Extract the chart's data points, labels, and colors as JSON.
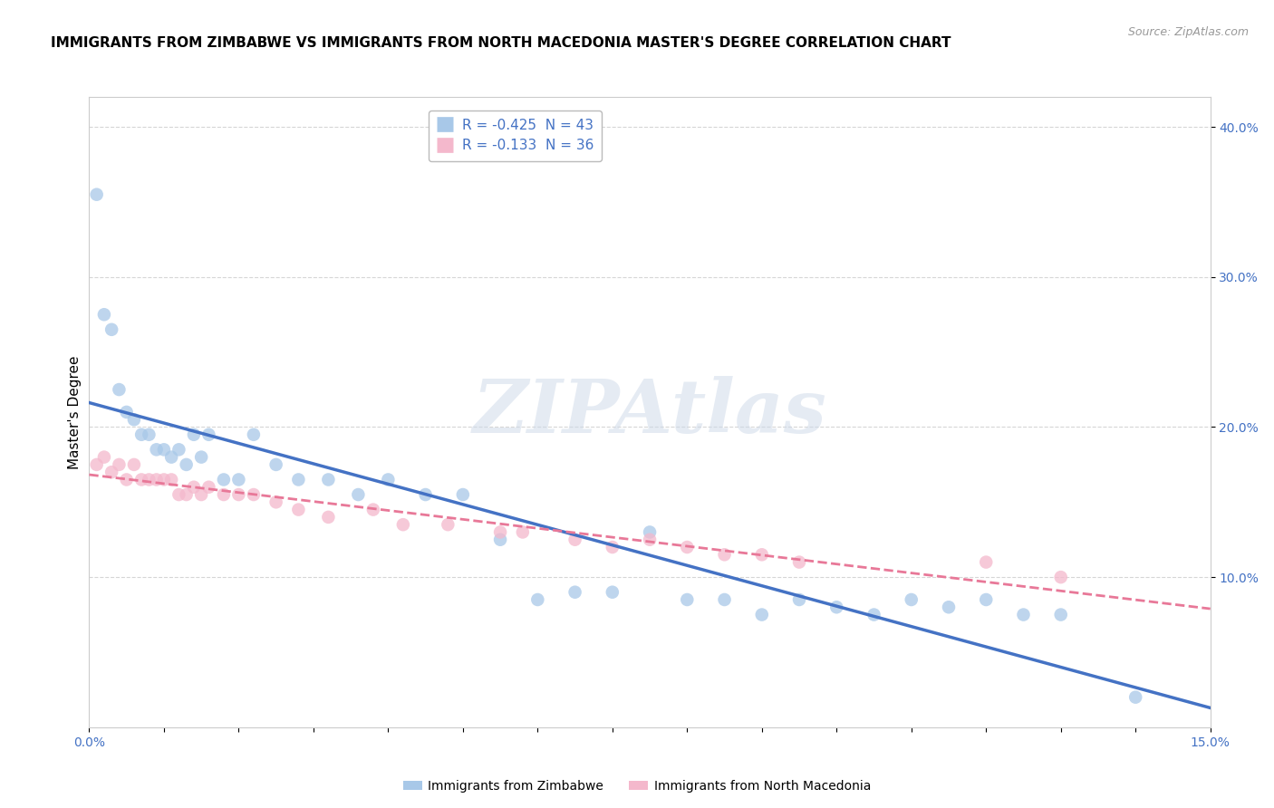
{
  "title": "IMMIGRANTS FROM ZIMBABWE VS IMMIGRANTS FROM NORTH MACEDONIA MASTER'S DEGREE CORRELATION CHART",
  "source": "Source: ZipAtlas.com",
  "ylabel": "Master's Degree",
  "xmin": 0.0,
  "xmax": 0.15,
  "ymin": 0.0,
  "ymax": 0.42,
  "yticks": [
    0.1,
    0.2,
    0.3,
    0.4
  ],
  "ytick_labels": [
    "10.0%",
    "20.0%",
    "30.0%",
    "40.0%"
  ],
  "legend_r1": "R = -0.425  N = 43",
  "legend_r2": "R = -0.133  N = 36",
  "color_zimbabwe": "#a8c8e8",
  "color_macedonia": "#f4b8cc",
  "line_color_zimbabwe": "#4472c4",
  "line_color_macedonia": "#e87898",
  "watermark": "ZIPAtlas",
  "zimbabwe_x": [
    0.001,
    0.002,
    0.003,
    0.004,
    0.005,
    0.006,
    0.007,
    0.008,
    0.009,
    0.01,
    0.011,
    0.012,
    0.013,
    0.014,
    0.015,
    0.016,
    0.018,
    0.02,
    0.022,
    0.025,
    0.028,
    0.032,
    0.036,
    0.04,
    0.045,
    0.05,
    0.055,
    0.06,
    0.065,
    0.07,
    0.075,
    0.08,
    0.085,
    0.09,
    0.095,
    0.1,
    0.105,
    0.11,
    0.115,
    0.12,
    0.125,
    0.13,
    0.14
  ],
  "zimbabwe_y": [
    0.355,
    0.275,
    0.265,
    0.225,
    0.21,
    0.205,
    0.195,
    0.195,
    0.185,
    0.185,
    0.18,
    0.185,
    0.175,
    0.195,
    0.18,
    0.195,
    0.165,
    0.165,
    0.195,
    0.175,
    0.165,
    0.165,
    0.155,
    0.165,
    0.155,
    0.155,
    0.125,
    0.085,
    0.09,
    0.09,
    0.13,
    0.085,
    0.085,
    0.075,
    0.085,
    0.08,
    0.075,
    0.085,
    0.08,
    0.085,
    0.075,
    0.075,
    0.02
  ],
  "macedonia_x": [
    0.001,
    0.002,
    0.003,
    0.004,
    0.005,
    0.006,
    0.007,
    0.008,
    0.009,
    0.01,
    0.011,
    0.012,
    0.013,
    0.014,
    0.015,
    0.016,
    0.018,
    0.02,
    0.022,
    0.025,
    0.028,
    0.032,
    0.038,
    0.042,
    0.048,
    0.055,
    0.058,
    0.065,
    0.07,
    0.075,
    0.08,
    0.085,
    0.09,
    0.095,
    0.12,
    0.13
  ],
  "macedonia_y": [
    0.175,
    0.18,
    0.17,
    0.175,
    0.165,
    0.175,
    0.165,
    0.165,
    0.165,
    0.165,
    0.165,
    0.155,
    0.155,
    0.16,
    0.155,
    0.16,
    0.155,
    0.155,
    0.155,
    0.15,
    0.145,
    0.14,
    0.145,
    0.135,
    0.135,
    0.13,
    0.13,
    0.125,
    0.12,
    0.125,
    0.12,
    0.115,
    0.115,
    0.11,
    0.11,
    0.1
  ]
}
